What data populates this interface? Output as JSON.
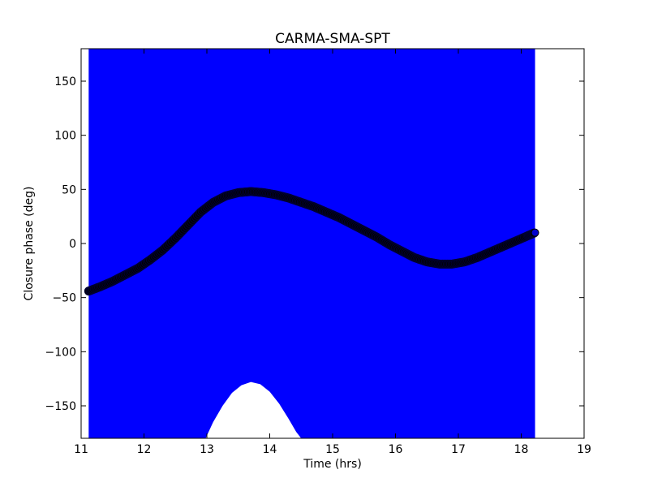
{
  "chart_data": {
    "type": "scatter",
    "title": "CARMA-SMA-SPT",
    "xlabel": "Time (hrs)",
    "ylabel": "Closure phase (deg)",
    "xlim": [
      11,
      19
    ],
    "ylim": [
      -180,
      180
    ],
    "xticks": [
      11,
      12,
      13,
      14,
      15,
      16,
      17,
      18,
      19
    ],
    "yticks": [
      -150,
      -100,
      -50,
      0,
      50,
      100,
      150
    ],
    "ytick_labels": [
      "−150",
      "−100",
      "−50",
      "0",
      "50",
      "100",
      "150"
    ],
    "grid": false,
    "fill_band": {
      "color": "#0000ff",
      "x_start": 11.12,
      "x_end": 18.22,
      "upper": 180,
      "lower": -180,
      "gap": {
        "x": [
          12.98,
          13.1,
          13.25,
          13.4,
          13.55,
          13.7,
          13.85,
          14.0,
          14.15,
          14.3,
          14.42,
          14.5
        ],
        "y": [
          -180,
          -165,
          -150,
          -138,
          -131,
          -128,
          -130,
          -137,
          -148,
          -162,
          -174,
          -180
        ]
      }
    },
    "series": [
      {
        "color": "#000000",
        "marker_edge": "#000033",
        "x": [
          11.12,
          11.3,
          11.5,
          11.7,
          11.9,
          12.1,
          12.3,
          12.5,
          12.7,
          12.9,
          13.1,
          13.3,
          13.5,
          13.7,
          13.9,
          14.1,
          14.3,
          14.5,
          14.7,
          14.9,
          15.1,
          15.3,
          15.5,
          15.7,
          15.9,
          16.1,
          16.3,
          16.5,
          16.7,
          16.9,
          17.1,
          17.3,
          17.5,
          17.7,
          17.9,
          18.1,
          18.22
        ],
        "y": [
          -44,
          -40,
          -35,
          -29,
          -23,
          -15,
          -6,
          5,
          17,
          29,
          38,
          44,
          47,
          48,
          47,
          45,
          42,
          38,
          34,
          29,
          24,
          18,
          12,
          6,
          -1,
          -7,
          -13,
          -17,
          -19,
          -19,
          -17,
          -13,
          -8,
          -3,
          2,
          7,
          10
        ]
      }
    ]
  }
}
